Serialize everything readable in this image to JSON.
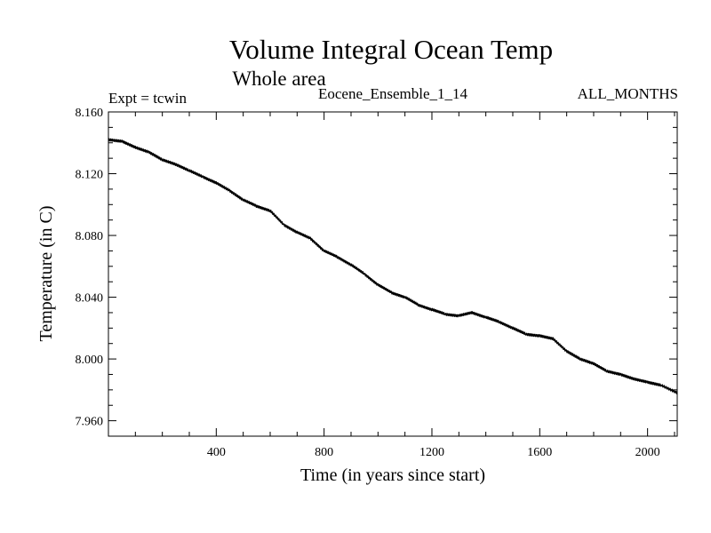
{
  "chart_data": {
    "type": "line",
    "title": "Volume Integral Ocean Temp",
    "subtitle": "Whole area",
    "header_left": "Expt = tcwin",
    "header_center": "Eocene_Ensemble_1_14",
    "header_right": "ALL_MONTHS",
    "xlabel": "Time (in years since start)",
    "ylabel": "Temperature (in C)",
    "xlim": [
      0,
      2110
    ],
    "ylim": [
      7.95,
      8.16
    ],
    "x_ticks": [
      400,
      800,
      1200,
      1600,
      2000
    ],
    "x_tick_labels": [
      "400",
      "800",
      "1200",
      "1600",
      "2000"
    ],
    "y_ticks": [
      7.96,
      8.0,
      8.04,
      8.08,
      8.12,
      8.16
    ],
    "y_tick_labels": [
      "7.960",
      "8.000",
      "8.040",
      "8.080",
      "8.120",
      "8.160"
    ],
    "x_minor_step": 100,
    "y_minor_step": 0.01,
    "grid": false,
    "line_color": "#000000",
    "series": [
      {
        "x": [
          0,
          50,
          100,
          150,
          200,
          250,
          300,
          350,
          400,
          450,
          500,
          550,
          600,
          650,
          700,
          750,
          800,
          850,
          900,
          950,
          1000,
          1050,
          1100,
          1150,
          1200,
          1250,
          1300,
          1350,
          1400,
          1450,
          1500,
          1550,
          1600,
          1650,
          1700,
          1750,
          1800,
          1850,
          1900,
          1950,
          2000,
          2050,
          2110
        ],
        "values": [
          8.142,
          8.141,
          8.137,
          8.134,
          8.129,
          8.126,
          8.122,
          8.118,
          8.114,
          8.109,
          8.103,
          8.099,
          8.096,
          8.087,
          8.082,
          8.078,
          8.07,
          8.066,
          8.061,
          8.055,
          8.048,
          8.043,
          8.04,
          8.035,
          8.032,
          8.029,
          8.028,
          8.03,
          8.027,
          8.024,
          8.02,
          8.016,
          8.015,
          8.013,
          8.005,
          8.0,
          7.997,
          7.992,
          7.99,
          7.987,
          7.985,
          7.983,
          7.978
        ]
      }
    ]
  }
}
